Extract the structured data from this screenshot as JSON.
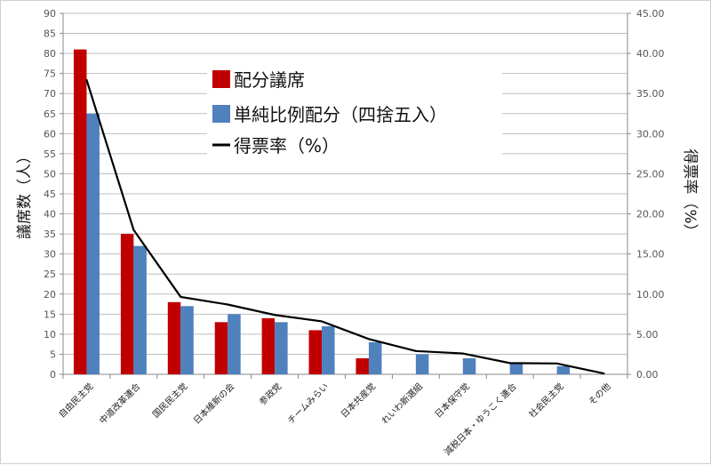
{
  "chart_data": {
    "type": "bar",
    "categories": [
      "自由民主党",
      "中道改革連合",
      "国民民主党",
      "日本維新の会",
      "参政党",
      "チームみらい",
      "日本共産党",
      "れいわ新選組",
      "日本保守党",
      "減税日本・ゆうこく連合",
      "社会民主党",
      "その他"
    ],
    "series": [
      {
        "name": "配分議席",
        "type": "bar",
        "axis": "left",
        "color": "#c00000",
        "values": [
          81,
          35,
          18,
          13,
          14,
          11,
          4,
          0,
          0,
          0,
          0,
          0
        ]
      },
      {
        "name": "単純比例配分（四捨五入）",
        "type": "bar",
        "axis": "left",
        "color": "#4f81bd",
        "values": [
          65,
          32,
          17,
          15,
          13,
          12,
          8,
          5,
          4,
          3,
          2,
          0
        ]
      },
      {
        "name": "得票率（%）",
        "type": "line",
        "axis": "right",
        "color": "#000000",
        "values": [
          36.7,
          18.0,
          9.65,
          8.7,
          7.4,
          6.6,
          4.4,
          2.9,
          2.6,
          1.4,
          1.35,
          0.1
        ]
      }
    ],
    "ylabel": "議席数（人）",
    "y2label": "得票率（%）",
    "ylim": [
      0,
      90
    ],
    "y2lim": [
      0,
      45
    ],
    "yticks": [
      "0",
      "5",
      "10",
      "15",
      "20",
      "25",
      "30",
      "35",
      "40",
      "45",
      "50",
      "55",
      "60",
      "65",
      "70",
      "75",
      "80",
      "85",
      "90"
    ],
    "y2ticks": [
      "0.00",
      "5.00",
      "10.00",
      "15.00",
      "20.00",
      "25.00",
      "30.00",
      "35.00",
      "40.00",
      "45.00"
    ],
    "grid": true,
    "legend": "top-center"
  }
}
